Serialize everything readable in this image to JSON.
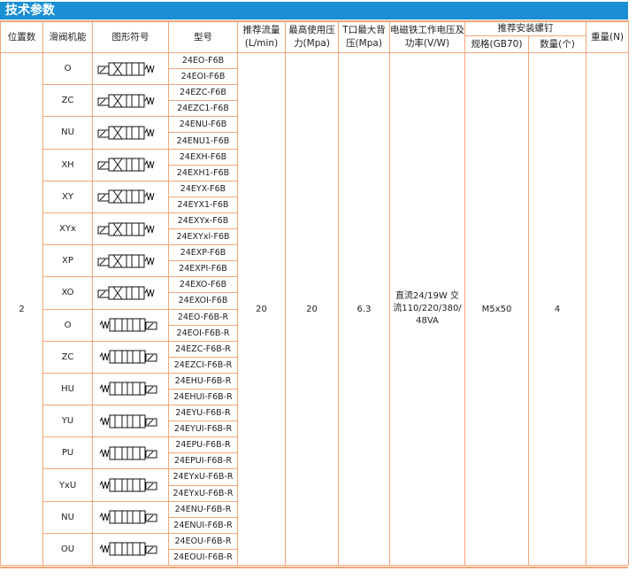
{
  "section_title": "技术参数",
  "headers": {
    "positions": "位置数",
    "spool_function": "滑阀机能",
    "symbol": "图形符号",
    "model": "型号",
    "flow": "推荐流量(L/min)",
    "max_pressure": "最高使用压力(Mpa)",
    "t_back_pressure": "T口最大背压(Mpa)",
    "voltage_power": "电磁铁工作电压及功率(V/W)",
    "screws": "推荐安装螺钉",
    "screw_spec": "规格(GB70)",
    "screw_qty": "数量(个)",
    "weight": "重量(N)"
  },
  "shared_values": {
    "positions": "2",
    "flow": "20",
    "max_pressure": "20",
    "t_back_pressure": "6.3",
    "voltage_power": "直流24/19W 交流110/220/380/48VA",
    "screw_spec": "M5x50",
    "screw_qty": "4",
    "weight": ""
  },
  "rows": [
    {
      "function": "O",
      "symbol": "valve-symbol-o",
      "models": [
        "24EO-F6B",
        "24EOI-F6B"
      ]
    },
    {
      "function": "ZC",
      "symbol": "valve-symbol-zc",
      "models": [
        "24EZC-F6B",
        "24EZC1-F6B"
      ]
    },
    {
      "function": "NU",
      "symbol": "valve-symbol-nu",
      "models": [
        "24ENU-F6B",
        "24ENU1-F6B"
      ]
    },
    {
      "function": "XH",
      "symbol": "valve-symbol-xh",
      "models": [
        "24EXH-F6B",
        "24EXH1-F6B"
      ]
    },
    {
      "function": "XY",
      "symbol": "valve-symbol-xy",
      "models": [
        "24EYX-F6B",
        "24EYX1-F6B"
      ]
    },
    {
      "function": "XYx",
      "symbol": "valve-symbol-xyx",
      "models": [
        "24EXYx-F6B",
        "24EXYxl-F6B"
      ]
    },
    {
      "function": "XP",
      "symbol": "valve-symbol-xp",
      "models": [
        "24EXP-F6B",
        "24EXPI-F6B"
      ]
    },
    {
      "function": "XO",
      "symbol": "valve-symbol-xo",
      "models": [
        "24EXO-F6B",
        "24EXOI-F6B"
      ]
    },
    {
      "function": "O",
      "symbol": "valve-symbol-o-r",
      "models": [
        "24EO-F6B-R",
        "24EOI-F6B-R"
      ]
    },
    {
      "function": "ZC",
      "symbol": "valve-symbol-zc-r",
      "models": [
        "24EZC-F6B-R",
        "24EZCI-F6B-R"
      ]
    },
    {
      "function": "HU",
      "symbol": "valve-symbol-hu-r",
      "models": [
        "24EHU-F6B-R",
        "24EHUI-F6B-R"
      ]
    },
    {
      "function": "YU",
      "symbol": "valve-symbol-yu-r",
      "models": [
        "24EYU-F6B-R",
        "24EYUI-F6B-R"
      ]
    },
    {
      "function": "PU",
      "symbol": "valve-symbol-pu-r",
      "models": [
        "24EPU-F6B-R",
        "24EPUI-F6B-R"
      ]
    },
    {
      "function": "YxU",
      "symbol": "valve-symbol-yxu-r",
      "models": [
        "24EYxU-F6B-R",
        "24EYxU-F6B-R"
      ]
    },
    {
      "function": "NU",
      "symbol": "valve-symbol-nu-r",
      "models": [
        "24ENU-F6B-R",
        "24ENUI-F6B-R"
      ]
    },
    {
      "function": "OU",
      "symbol": "valve-symbol-ou-r",
      "models": [
        "24EOU-F6B-R",
        "24EOUI-F6B-R"
      ]
    }
  ],
  "port_labels": [
    "A",
    "B",
    "P",
    "T"
  ],
  "colors": {
    "header_bar": "#1a8fd4",
    "border": "#f2a577"
  }
}
